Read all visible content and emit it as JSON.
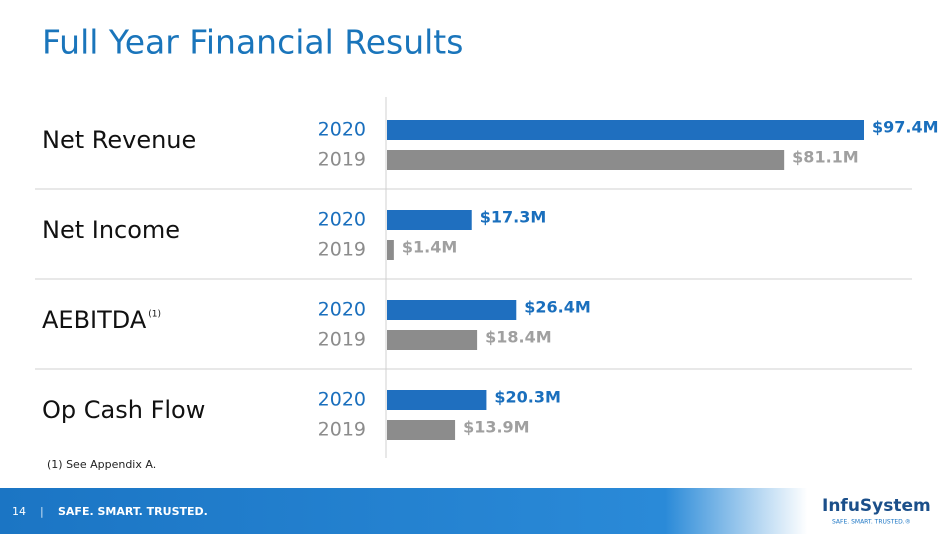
{
  "chart_data": {
    "type": "bar",
    "orientation": "horizontal",
    "title": "Full Year Financial Results",
    "categories": [
      "Net Revenue",
      "Net Income",
      "AEBITDA",
      "Op Cash Flow"
    ],
    "category_notes": [
      null,
      null,
      "(1)",
      null
    ],
    "series": [
      {
        "name": "2020",
        "color": "#1f6fbf",
        "values": [
          97.4,
          17.3,
          26.4,
          20.3
        ],
        "value_labels": [
          "$97.4M",
          "$17.3M",
          "$26.4M",
          "$20.3M"
        ]
      },
      {
        "name": "2019",
        "color": "#8c8c8c",
        "values": [
          81.1,
          1.4,
          18.4,
          13.9
        ],
        "value_labels": [
          "$81.1M",
          "$1.4M",
          "$18.4M",
          "$13.9M"
        ]
      }
    ],
    "footnote": "(1) See Appendix A."
  },
  "footer": {
    "page": "14",
    "tagline": "SAFE. SMART. TRUSTED.",
    "logo": "InfuSystem",
    "logo_tagline": "SAFE. SMART. TRUSTED.®"
  }
}
